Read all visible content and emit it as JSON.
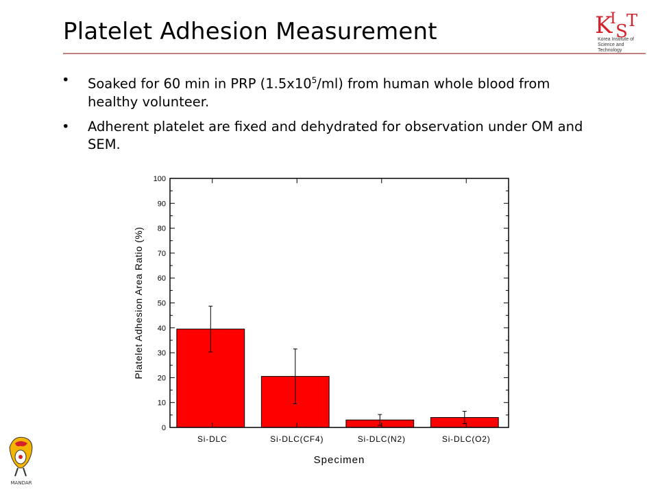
{
  "slide": {
    "title": "Platelet Adhesion Measurement",
    "bullets": [
      {
        "pre": "Soaked for 60 min in PRP (1.5x10",
        "sup": "5",
        "post": "/ml) from human whole blood from healthy volunteer."
      },
      {
        "pre": "Adherent platelet are fixed and dehydrated for observation under OM and SEM.",
        "sup": "",
        "post": ""
      }
    ],
    "logo": {
      "letters": "KIST",
      "caption_line1": "Korea Institute of",
      "caption_line2": "Science and Technology"
    },
    "corner_logo": {
      "text": "MANDAR"
    },
    "colors": {
      "accent_rule": "#c08080",
      "bar_fill": "#ff0000",
      "logo_red": "#d4202a"
    }
  },
  "chart_data": {
    "type": "bar",
    "categories": [
      "Si-DLC",
      "Si-DLC(CF4)",
      "Si-DLC(N2)",
      "Si-DLC(O2)"
    ],
    "values": [
      39.5,
      20.5,
      3,
      4
    ],
    "errors": [
      9.2,
      11,
      2.2,
      2.5
    ],
    "xlabel": "Specimen",
    "ylabel": "Platelet Adhesion Area Ratio (%)",
    "ylim": [
      0,
      100
    ],
    "yticks": [
      0,
      10,
      20,
      30,
      40,
      50,
      60,
      70,
      80,
      90,
      100
    ],
    "grid": false,
    "legend": "none"
  }
}
